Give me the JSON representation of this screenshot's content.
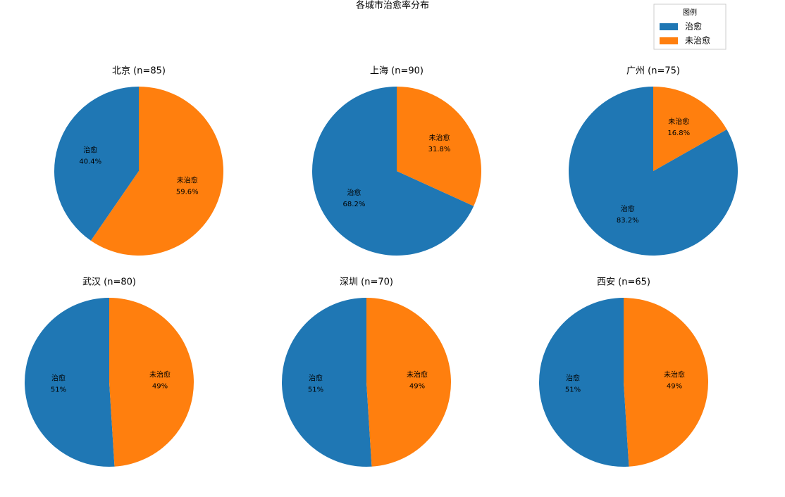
{
  "title": "各城市治愈率分布",
  "legend": {
    "title": "图例",
    "labels": [
      "治愈",
      "未治愈"
    ],
    "colors": [
      "#1f77b4",
      "#ff7f0e"
    ]
  },
  "chart_data": [
    {
      "type": "pie",
      "title": "北京 (n=85)",
      "labels": [
        "治愈",
        "未治愈"
      ],
      "values": [
        40.4,
        59.6
      ],
      "value_labels": [
        "40.4%",
        "59.6%"
      ],
      "colors": [
        "#1f77b4",
        "#ff7f0e"
      ]
    },
    {
      "type": "pie",
      "title": "上海 (n=90)",
      "labels": [
        "治愈",
        "未治愈"
      ],
      "values": [
        68.2,
        31.8
      ],
      "value_labels": [
        "68.2%",
        "31.8%"
      ],
      "colors": [
        "#1f77b4",
        "#ff7f0e"
      ]
    },
    {
      "type": "pie",
      "title": "广州 (n=75)",
      "labels": [
        "治愈",
        "未治愈"
      ],
      "values": [
        83.2,
        16.8
      ],
      "value_labels": [
        "83.2%",
        "16.8%"
      ],
      "colors": [
        "#1f77b4",
        "#ff7f0e"
      ]
    },
    {
      "type": "pie",
      "title": "武汉 (n=80)",
      "labels": [
        "治愈",
        "未治愈"
      ],
      "values": [
        51,
        49
      ],
      "value_labels": [
        "51%",
        "49%"
      ],
      "colors": [
        "#1f77b4",
        "#ff7f0e"
      ]
    },
    {
      "type": "pie",
      "title": "深圳 (n=70)",
      "labels": [
        "治愈",
        "未治愈"
      ],
      "values": [
        51,
        49
      ],
      "value_labels": [
        "51%",
        "49%"
      ],
      "colors": [
        "#1f77b4",
        "#ff7f0e"
      ]
    },
    {
      "type": "pie",
      "title": "西安 (n=65)",
      "labels": [
        "治愈",
        "未治愈"
      ],
      "values": [
        51,
        49
      ],
      "value_labels": [
        "51%",
        "49%"
      ],
      "colors": [
        "#1f77b4",
        "#ff7f0e"
      ]
    }
  ]
}
